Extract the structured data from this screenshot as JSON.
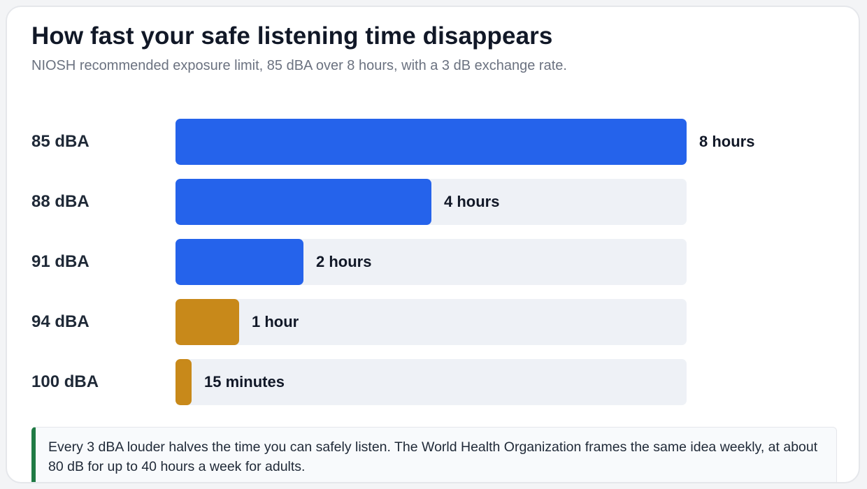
{
  "chart_data": {
    "type": "bar",
    "orientation": "horizontal",
    "title": "How fast your safe listening time disappears",
    "subtitle": "NIOSH recommended exposure limit, 85 dBA over 8 hours, with a 3 dB exchange rate.",
    "categories": [
      "85 dBA",
      "88 dBA",
      "91 dBA",
      "94 dBA",
      "100 dBA"
    ],
    "values": [
      480,
      240,
      120,
      60,
      15
    ],
    "value_labels": [
      "8 hours",
      "4 hours",
      "2 hours",
      "1 hour",
      "15 minutes"
    ],
    "xlim": [
      0,
      480
    ],
    "colors": [
      "#2563eb",
      "#2563eb",
      "#2563eb",
      "#c8891a",
      "#c8891a"
    ],
    "grid": false,
    "legend": "none"
  },
  "note": {
    "text": "Every 3 dBA louder halves the time you can safely listen. The World Health Organization frames the same idea weekly, at about 80 dB for up to 40 hours a week for adults."
  }
}
